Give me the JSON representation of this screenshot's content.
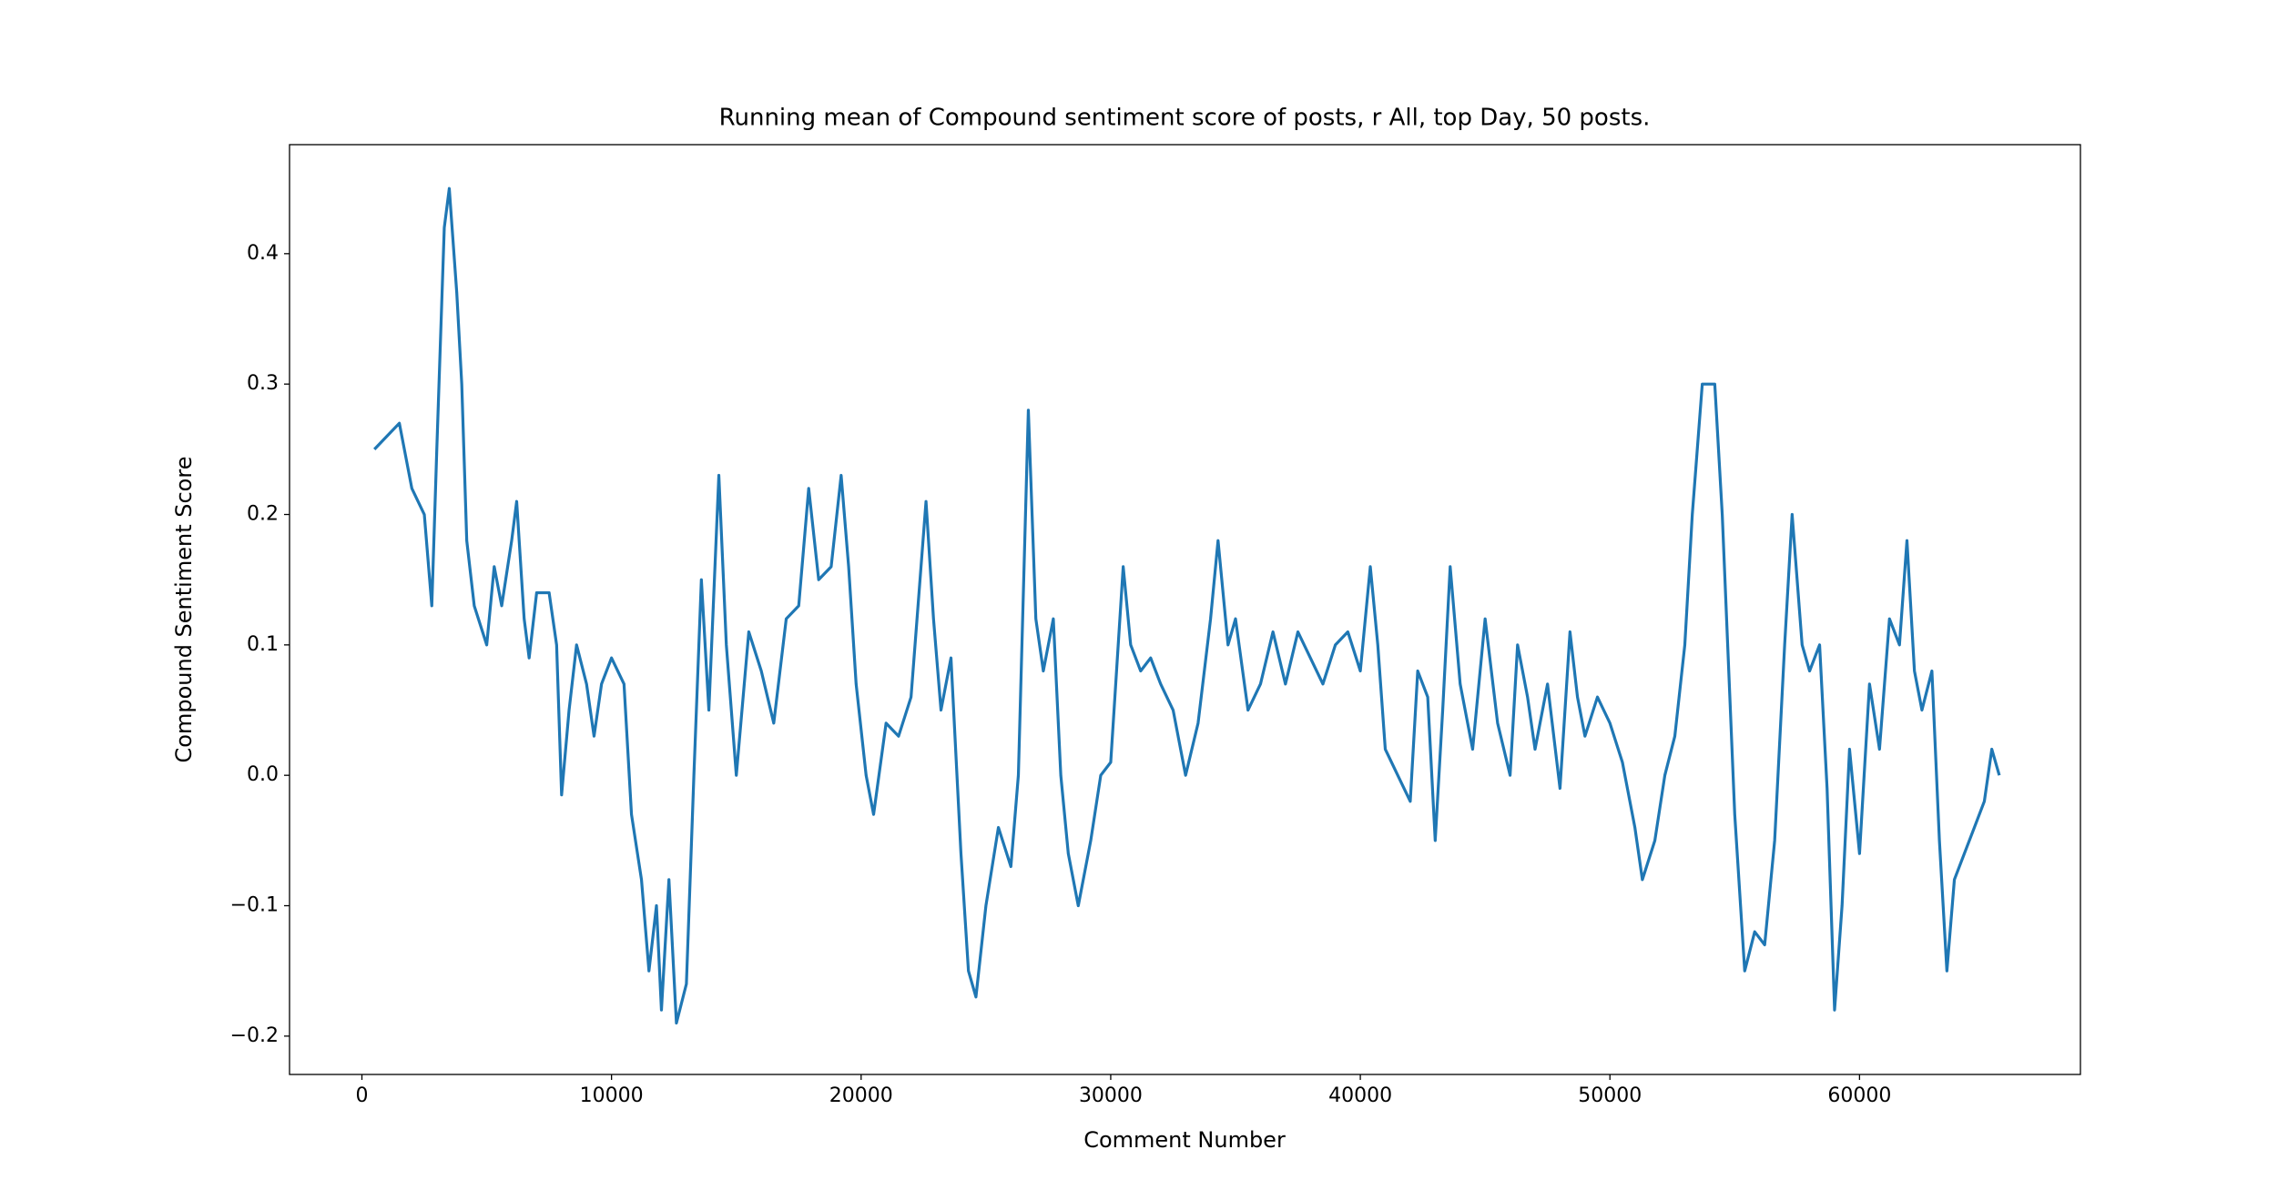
{
  "chart_data": {
    "type": "line",
    "title": "Running mean of Compound sentiment score of posts, r All, top Day, 50 posts.",
    "x_label": "Comment Number",
    "y_label": "Compound Sentiment Score",
    "xlim": [
      -2900,
      68850
    ],
    "ylim": [
      -0.2294,
      0.4836
    ],
    "xticks": [
      0,
      10000,
      20000,
      30000,
      40000,
      50000,
      60000
    ],
    "yticks": [
      {
        "value": -0.2,
        "label": "−0.2"
      },
      {
        "value": -0.1,
        "label": "−0.1"
      },
      {
        "value": 0,
        "label": "0.0"
      },
      0.1,
      0.2,
      0.3,
      0.4
    ],
    "series": [
      {
        "color": "#1f77b4",
        "x": [
          500,
          1000,
          1500,
          2000,
          2500,
          2800,
          3000,
          3300,
          3500,
          3800,
          4000,
          4200,
          4500,
          5000,
          5300,
          5600,
          6000,
          6200,
          6500,
          6700,
          7000,
          7500,
          7800,
          8000,
          8300,
          8600,
          9000,
          9300,
          9600,
          10000,
          10500,
          10800,
          11200,
          11500,
          11800,
          12000,
          12300,
          12600,
          13000,
          13300,
          13600,
          13900,
          14300,
          14600,
          15000,
          15500,
          16000,
          16500,
          17000,
          17500,
          17900,
          18300,
          18800,
          19200,
          19500,
          19800,
          20200,
          20500,
          21000,
          21500,
          22000,
          22600,
          22900,
          23200,
          23600,
          24000,
          24300,
          24600,
          25000,
          25500,
          26000,
          26300,
          26700,
          27000,
          27300,
          27700,
          28000,
          28300,
          28700,
          29200,
          29600,
          30000,
          30500,
          30800,
          31200,
          31600,
          32000,
          32500,
          33000,
          33500,
          34000,
          34300,
          34700,
          35000,
          35500,
          36000,
          36500,
          37000,
          37500,
          38000,
          38500,
          39000,
          39500,
          40000,
          40400,
          40700,
          41000,
          41500,
          42000,
          42300,
          42700,
          43000,
          43300,
          43600,
          44000,
          44500,
          45000,
          45500,
          46000,
          46300,
          46700,
          47000,
          47500,
          48000,
          48400,
          48700,
          49000,
          49500,
          50000,
          50500,
          51000,
          51300,
          51800,
          52200,
          52600,
          53000,
          53300,
          53700,
          54200,
          54500,
          55000,
          55400,
          55800,
          56200,
          56600,
          57000,
          57300,
          57700,
          58000,
          58400,
          58700,
          59000,
          59300,
          59600,
          60000,
          60400,
          60800,
          61200,
          61600,
          61900,
          62200,
          62500,
          62900,
          63200,
          63500,
          63800,
          64200,
          64600,
          65000,
          65300,
          65600
        ],
        "values": [
          0.25,
          0.26,
          0.27,
          0.22,
          0.2,
          0.13,
          0.25,
          0.42,
          0.45,
          0.37,
          0.3,
          0.18,
          0.13,
          0.1,
          0.16,
          0.13,
          0.18,
          0.21,
          0.12,
          0.09,
          0.14,
          0.14,
          0.1,
          -0.015,
          0.05,
          0.1,
          0.07,
          0.03,
          0.07,
          0.09,
          0.07,
          -0.03,
          -0.08,
          -0.15,
          -0.1,
          -0.18,
          -0.08,
          -0.19,
          -0.16,
          0.0,
          0.15,
          0.05,
          0.23,
          0.1,
          0.0,
          0.11,
          0.08,
          0.04,
          0.12,
          0.13,
          0.22,
          0.15,
          0.16,
          0.23,
          0.16,
          0.07,
          0.0,
          -0.03,
          0.04,
          0.03,
          0.06,
          0.21,
          0.12,
          0.05,
          0.09,
          -0.06,
          -0.15,
          -0.17,
          -0.1,
          -0.04,
          -0.07,
          0.0,
          0.28,
          0.12,
          0.08,
          0.12,
          0.0,
          -0.06,
          -0.1,
          -0.05,
          0.0,
          0.01,
          0.16,
          0.1,
          0.08,
          0.09,
          0.07,
          0.05,
          0.0,
          0.04,
          0.12,
          0.18,
          0.1,
          0.12,
          0.05,
          0.07,
          0.11,
          0.07,
          0.11,
          0.09,
          0.07,
          0.1,
          0.11,
          0.08,
          0.16,
          0.1,
          0.02,
          0.0,
          -0.02,
          0.08,
          0.06,
          -0.05,
          0.05,
          0.16,
          0.07,
          0.02,
          0.12,
          0.04,
          0.0,
          0.1,
          0.06,
          0.02,
          0.07,
          -0.01,
          0.11,
          0.06,
          0.03,
          0.06,
          0.04,
          0.01,
          -0.04,
          -0.08,
          -0.05,
          0.0,
          0.03,
          0.1,
          0.2,
          0.3,
          0.3,
          0.2,
          -0.03,
          -0.15,
          -0.12,
          -0.13,
          -0.05,
          0.1,
          0.2,
          0.1,
          0.08,
          0.1,
          -0.01,
          -0.18,
          -0.1,
          0.02,
          -0.06,
          0.07,
          0.02,
          0.12,
          0.1,
          0.18,
          0.08,
          0.05,
          0.08,
          -0.05,
          -0.15,
          -0.08,
          -0.06,
          -0.04,
          -0.02,
          0.02,
          0.0
        ]
      }
    ]
  }
}
